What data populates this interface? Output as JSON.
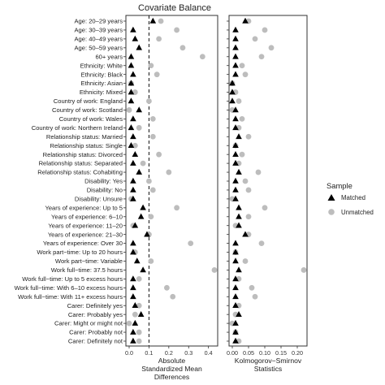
{
  "chart_data": {
    "type": "scatter",
    "title": "Covariate Balance",
    "categories": [
      "Age: 20–29 years",
      "Age: 30–39 years",
      "Age: 40–49 years",
      "Age: 50–59 years",
      "60+ years",
      "Ethnicity: White",
      "Ethnicity: Black",
      "Ethnicity: Asian",
      "Ethnicity: Mixed",
      "Country of work: England",
      "Country of work: Scotland",
      "Country of work: Wales",
      "Country of work: Northern Ireland",
      "Relationship status: Married",
      "Relationship status: Single",
      "Relationship status: Divorced",
      "Relationship status: Separated",
      "Relationship status: Cohabiting",
      "Disability: Yes",
      "Disability: No",
      "Disability: Unsure",
      "Years of experience: Up to 5",
      "Years of experience: 6–10",
      "Years of experience: 11–20",
      "Years of experience: 21–30",
      "Years of experience: Over 30",
      "Work part−time: Up to 20 hours",
      "Work part−time: Variable",
      "Work full−time: 37.5 hours",
      "Work full−time: Up to 5 excess hours",
      "Work full−time: With 6–10 excess hours",
      "Work full−time: With 11+ excess hours",
      "Carer: Definitely yes",
      "Carer: Probably yes",
      "Carer: Might or might not",
      "Carer: Probably not",
      "Carer: Definitely not"
    ],
    "panels": [
      {
        "xlabel": "Absolute\nStandardized Mean\nDifferences",
        "xlim": [
          0,
          0.43
        ],
        "xticks": [
          "0.0",
          "0.1",
          "0.2",
          "0.3",
          "0.4"
        ],
        "xtick_values": [
          0,
          0.1,
          0.2,
          0.3,
          0.4
        ],
        "threshold_line": 0.1,
        "series": [
          {
            "name": "Matched",
            "values": [
              0.12,
              0.02,
              0.03,
              0.05,
              0.01,
              0.01,
              0.02,
              0.01,
              0.01,
              0.01,
              0.05,
              0.02,
              0.01,
              0.02,
              0.01,
              0.03,
              0.02,
              0.05,
              0.02,
              0.02,
              0.02,
              0.07,
              0.06,
              0.03,
              0.09,
              0.02,
              0.02,
              0.04,
              0.07,
              0.02,
              0.02,
              0.02,
              0.03,
              0.06,
              0.03,
              0.02,
              0.02
            ]
          },
          {
            "name": "Unmatched",
            "values": [
              0.16,
              0.24,
              0.15,
              0.27,
              0.37,
              0.11,
              0.14,
              0.01,
              0.03,
              0.1,
              0.0,
              0.12,
              0.05,
              0.12,
              0.03,
              0.15,
              0.07,
              0.2,
              0.1,
              0.12,
              0.01,
              0.24,
              0.11,
              0.02,
              0.1,
              0.31,
              0.03,
              0.11,
              0.43,
              0.05,
              0.19,
              0.22,
              0.05,
              0.03,
              0.0,
              0.05,
              0.05
            ]
          }
        ]
      },
      {
        "xlabel": "Kolmogorov−Smirnov\nStatistics",
        "xlim": [
          0,
          0.22
        ],
        "xticks": [
          "0.00",
          "0.05",
          "0.10",
          "0.15",
          "0.20"
        ],
        "xtick_values": [
          0,
          0.05,
          0.1,
          0.15,
          0.2
        ],
        "series": [
          {
            "name": "Matched",
            "values": [
              0.04,
              0.01,
              0.01,
              0.01,
              0.01,
              0.01,
              0.01,
              0.0,
              0.0,
              0.0,
              0.01,
              0.01,
              0.01,
              0.02,
              0.01,
              0.01,
              0.01,
              0.02,
              0.01,
              0.01,
              0.01,
              0.02,
              0.02,
              0.02,
              0.04,
              0.01,
              0.01,
              0.01,
              0.02,
              0.01,
              0.01,
              0.01,
              0.01,
              0.02,
              0.01,
              0.01,
              0.01
            ]
          },
          {
            "name": "Unmatched",
            "values": [
              0.05,
              0.1,
              0.07,
              0.12,
              0.09,
              0.03,
              0.04,
              0.0,
              0.01,
              0.02,
              0.0,
              0.03,
              0.02,
              0.05,
              0.01,
              0.03,
              0.02,
              0.08,
              0.04,
              0.05,
              0.0,
              0.1,
              0.05,
              0.01,
              0.05,
              0.09,
              0.01,
              0.04,
              0.22,
              0.02,
              0.06,
              0.07,
              0.02,
              0.01,
              0.0,
              0.01,
              0.02
            ]
          }
        ]
      }
    ],
    "legend": {
      "title": "Sample",
      "position": "right",
      "entries": [
        {
          "name": "Matched",
          "marker": "triangle",
          "color": "#000000"
        },
        {
          "name": "Unmatched",
          "marker": "circle",
          "color": "#bdbdbd"
        }
      ]
    },
    "grid": false
  }
}
